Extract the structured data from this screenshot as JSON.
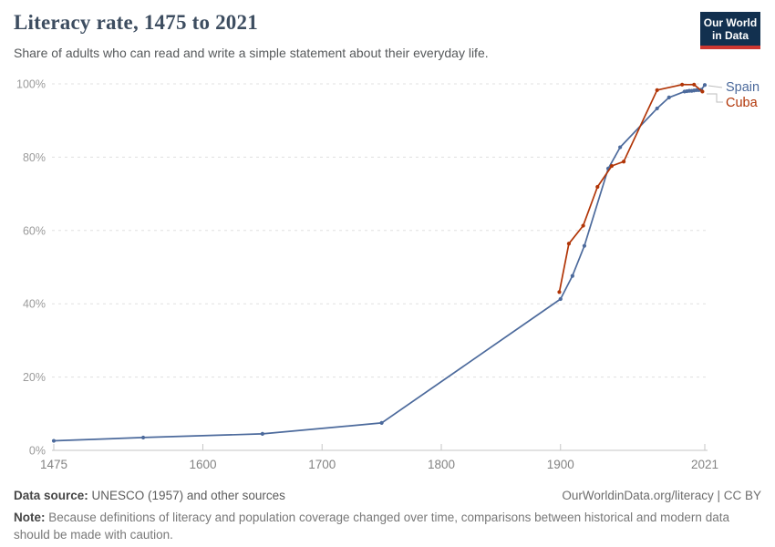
{
  "header": {
    "title": "Literacy rate, 1475 to 2021",
    "subtitle": "Share of adults who can read and write a simple statement about their everyday life.",
    "logo": {
      "line1": "Our World",
      "line2": "in Data"
    }
  },
  "colors": {
    "logo_navy": "#12304f",
    "logo_red": "#cd3731",
    "spain": "#4c6a9c",
    "cuba": "#b13507"
  },
  "chart_data": {
    "type": "line",
    "title": "Literacy rate, 1475 to 2021",
    "xlabel": "",
    "ylabel": "",
    "xlim": [
      1475,
      2021
    ],
    "ylim": [
      0,
      100
    ],
    "x_ticks": [
      1475,
      1600,
      1700,
      1800,
      1900,
      2021
    ],
    "x_tick_labels": [
      "1475",
      "1600",
      "1700",
      "1800",
      "1900",
      "2021"
    ],
    "y_ticks": [
      0,
      20,
      40,
      60,
      80,
      100
    ],
    "y_tick_labels": [
      "0%",
      "20%",
      "40%",
      "60%",
      "80%",
      "100%"
    ],
    "grid": "dashed-horizontal",
    "legend_position": "right-end-labels",
    "series": [
      {
        "name": "Spain",
        "color": "#4c6a9c",
        "points": [
          [
            1475,
            2.6
          ],
          [
            1550,
            3.5
          ],
          [
            1650,
            4.5
          ],
          [
            1750,
            7.5
          ],
          [
            1900,
            41.3
          ],
          [
            1910,
            47.6
          ],
          [
            1920,
            55.8
          ],
          [
            1940,
            76.9
          ],
          [
            1950,
            82.7
          ],
          [
            1981,
            93.3
          ],
          [
            1991,
            96.3
          ],
          [
            2004,
            97.9
          ],
          [
            2006,
            98.0
          ],
          [
            2008,
            98.1
          ],
          [
            2010,
            98.1
          ],
          [
            2012,
            98.2
          ],
          [
            2014,
            98.3
          ],
          [
            2016,
            98.3
          ],
          [
            2018,
            98.4
          ],
          [
            2021,
            99.7
          ]
        ]
      },
      {
        "name": "Cuba",
        "color": "#b13507",
        "points": [
          [
            1899,
            43.2
          ],
          [
            1907,
            56.4
          ],
          [
            1919,
            61.3
          ],
          [
            1931,
            71.9
          ],
          [
            1943,
            77.6
          ],
          [
            1953,
            78.8
          ],
          [
            1981,
            98.3
          ],
          [
            2002,
            99.8
          ],
          [
            2012,
            99.8
          ],
          [
            2019,
            97.9
          ]
        ]
      }
    ]
  },
  "footer": {
    "source_label": "Data source:",
    "source_value": "UNESCO (1957) and other sources",
    "attribution_link": "OurWorldinData.org/literacy",
    "attribution_suffix": " | CC BY",
    "note_label": "Note:",
    "note_text": "Because definitions of literacy and population coverage changed over time, comparisons between historical and modern data should be made with caution."
  }
}
